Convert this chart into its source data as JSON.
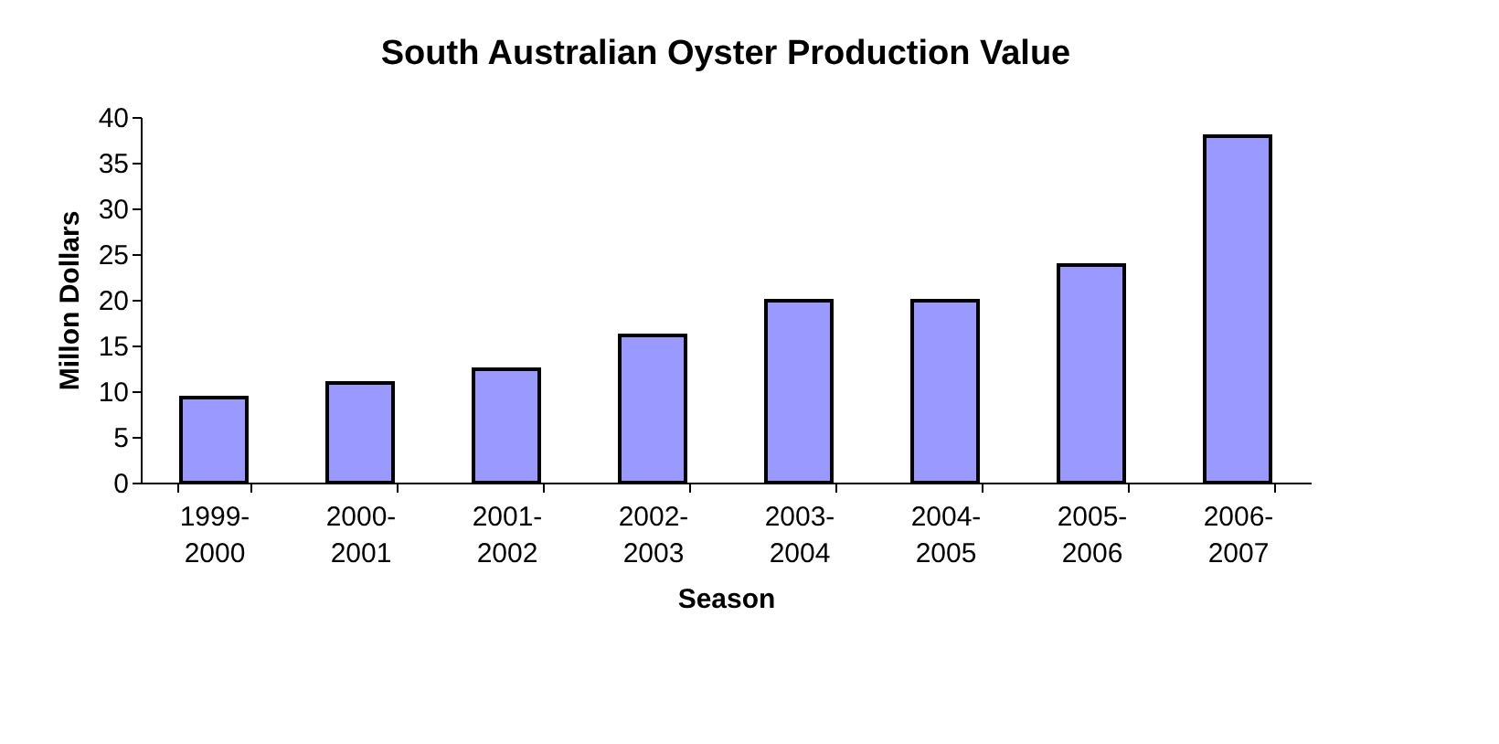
{
  "chart_data": {
    "type": "bar",
    "title": "South Australian Oyster Production Value",
    "xlabel": "Season",
    "ylabel": "Millon Dollars",
    "categories": [
      "1999-2000",
      "2000-2001",
      "2001-2002",
      "2002-2003",
      "2003-2004",
      "2004-2005",
      "2005-2006",
      "2006-2007"
    ],
    "values": [
      9.3,
      10.9,
      12.4,
      16.1,
      19.9,
      19.9,
      23.8,
      37.9
    ],
    "color": "#9999ff",
    "ylim": [
      0,
      40
    ],
    "yticks": [
      0,
      5,
      10,
      15,
      20,
      25,
      30,
      35,
      40
    ],
    "grid": false
  }
}
